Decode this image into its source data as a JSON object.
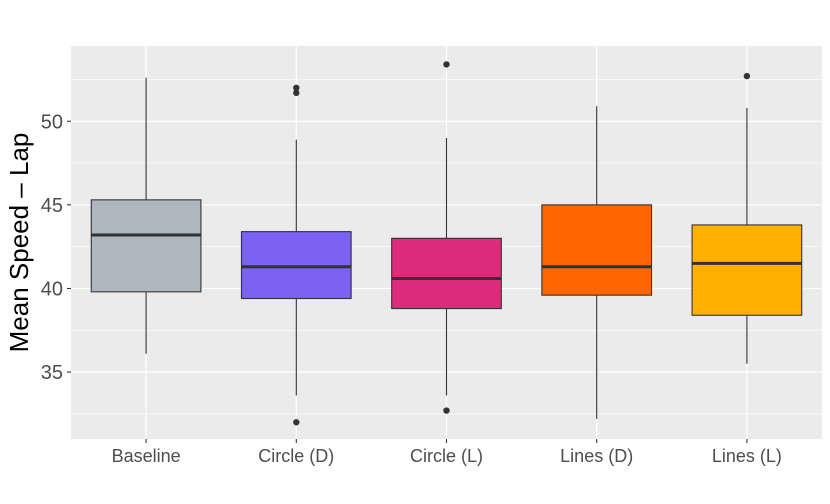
{
  "chart_data": {
    "type": "boxplot",
    "title": "",
    "xlabel": "",
    "ylabel": "Mean Speed – Lap",
    "ylim": [
      31.0,
      54.5
    ],
    "yticks": [
      35,
      40,
      45,
      50
    ],
    "grid": true,
    "legend": "none",
    "panel_color": "#EBEBEB",
    "categories": [
      "Baseline",
      "Circle (D)",
      "Circle (L)",
      "Lines (D)",
      "Lines (L)"
    ],
    "series": [
      {
        "category": "Baseline",
        "color": "#AEB6BF",
        "whisker_low": 36.1,
        "q1": 39.8,
        "median": 43.2,
        "q3": 45.3,
        "whisker_high": 52.6,
        "outliers": []
      },
      {
        "category": "Circle (D)",
        "color": "#7B61F4",
        "whisker_low": 33.6,
        "q1": 39.4,
        "median": 41.3,
        "q3": 43.4,
        "whisker_high": 48.9,
        "outliers": [
          52.0,
          51.7,
          32.0
        ]
      },
      {
        "category": "Circle (L)",
        "color": "#DD2A7B",
        "whisker_low": 33.6,
        "q1": 38.8,
        "median": 40.6,
        "q3": 43.0,
        "whisker_high": 49.0,
        "outliers": [
          53.4,
          32.7
        ]
      },
      {
        "category": "Lines (D)",
        "color": "#FF6600",
        "whisker_low": 32.2,
        "q1": 39.6,
        "median": 41.3,
        "q3": 45.0,
        "whisker_high": 50.9,
        "outliers": []
      },
      {
        "category": "Lines (L)",
        "color": "#FFB000",
        "whisker_low": 35.5,
        "q1": 38.4,
        "median": 41.5,
        "q3": 43.8,
        "whisker_high": 50.8,
        "outliers": [
          52.7
        ]
      }
    ]
  }
}
